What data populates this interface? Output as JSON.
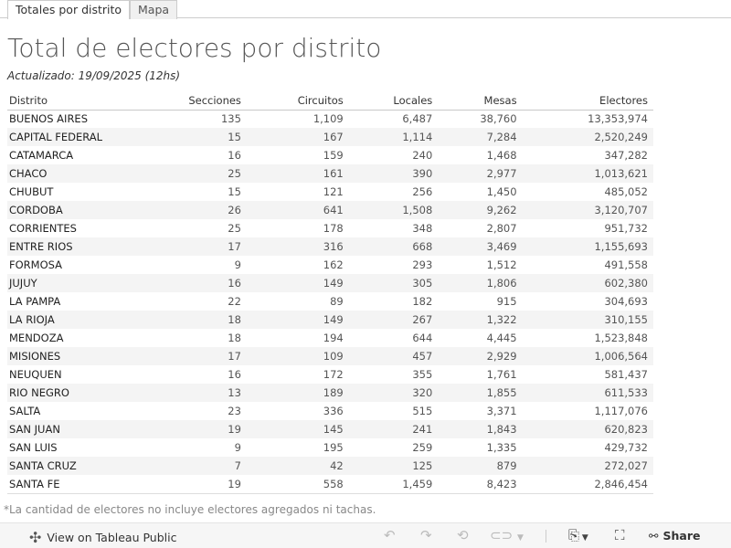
{
  "tabs": [
    {
      "label": "Totales por distrito",
      "active": true
    },
    {
      "label": "Mapa",
      "active": false
    }
  ],
  "title": "Total de electores por distrito",
  "subtitle": "Actualizado: 19/09/2025 (12hs)",
  "table": {
    "headers": [
      "Distrito",
      "Secciones",
      "Circuitos",
      "Locales",
      "Mesas",
      "Electores"
    ],
    "rows": [
      [
        "BUENOS AIRES",
        "135",
        "1,109",
        "6,487",
        "38,760",
        "13,353,974"
      ],
      [
        "CAPITAL FEDERAL",
        "15",
        "167",
        "1,114",
        "7,284",
        "2,520,249"
      ],
      [
        "CATAMARCA",
        "16",
        "159",
        "240",
        "1,468",
        "347,282"
      ],
      [
        "CHACO",
        "25",
        "161",
        "390",
        "2,977",
        "1,013,621"
      ],
      [
        "CHUBUT",
        "15",
        "121",
        "256",
        "1,450",
        "485,052"
      ],
      [
        "CORDOBA",
        "26",
        "641",
        "1,508",
        "9,262",
        "3,120,707"
      ],
      [
        "CORRIENTES",
        "25",
        "178",
        "348",
        "2,807",
        "951,732"
      ],
      [
        "ENTRE RIOS",
        "17",
        "316",
        "668",
        "3,469",
        "1,155,693"
      ],
      [
        "FORMOSA",
        "9",
        "162",
        "293",
        "1,512",
        "491,558"
      ],
      [
        "JUJUY",
        "16",
        "149",
        "305",
        "1,806",
        "602,380"
      ],
      [
        "LA PAMPA",
        "22",
        "89",
        "182",
        "915",
        "304,693"
      ],
      [
        "LA RIOJA",
        "18",
        "149",
        "267",
        "1,322",
        "310,155"
      ],
      [
        "MENDOZA",
        "18",
        "194",
        "644",
        "4,445",
        "1,523,848"
      ],
      [
        "MISIONES",
        "17",
        "109",
        "457",
        "2,929",
        "1,006,564"
      ],
      [
        "NEUQUEN",
        "16",
        "172",
        "355",
        "1,761",
        "581,437"
      ],
      [
        "RIO NEGRO",
        "13",
        "189",
        "320",
        "1,855",
        "611,533"
      ],
      [
        "SALTA",
        "23",
        "336",
        "515",
        "3,371",
        "1,117,076"
      ],
      [
        "SAN JUAN",
        "19",
        "145",
        "241",
        "1,843",
        "620,823"
      ],
      [
        "SAN LUIS",
        "9",
        "195",
        "259",
        "1,335",
        "429,732"
      ],
      [
        "SANTA CRUZ",
        "7",
        "42",
        "125",
        "879",
        "272,027"
      ],
      [
        "SANTA FE",
        "19",
        "558",
        "1,459",
        "8,423",
        "2,846,454"
      ]
    ]
  },
  "footnote": "*La cantidad de electores no incluye electores agregados ni tachas.",
  "toolbar": {
    "view_label": "View on Tableau Public",
    "share_label": "Share"
  }
}
